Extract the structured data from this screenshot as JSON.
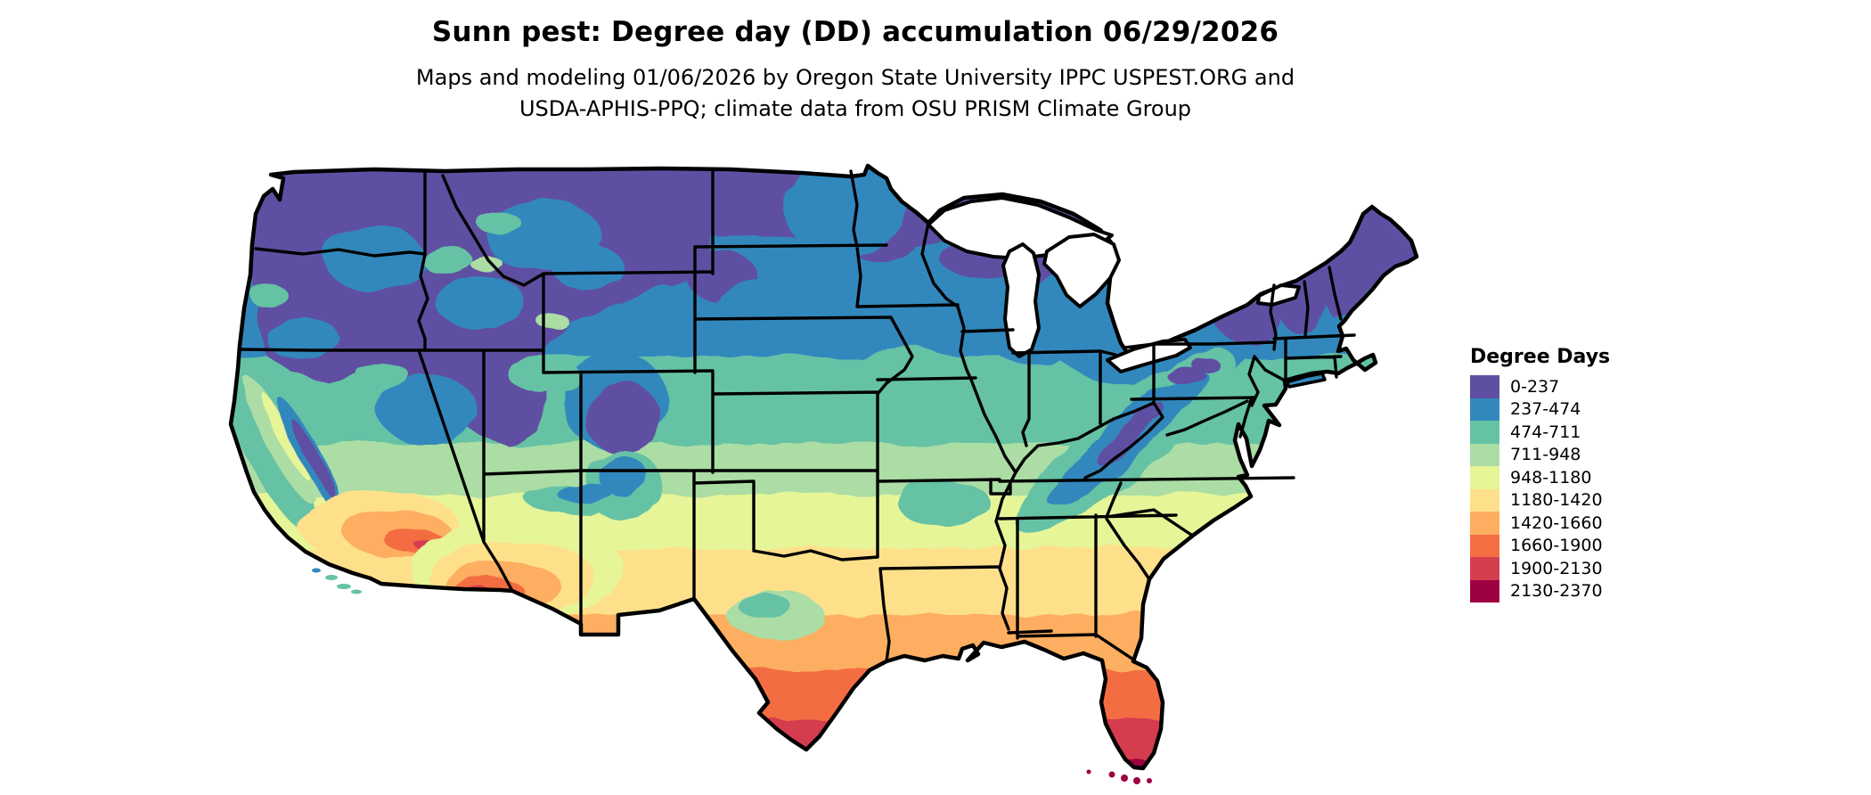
{
  "header": {
    "title": "Sunn pest: Degree day (DD) accumulation 06/29/2026",
    "subtitle_line1": "Maps and modeling 01/06/2026 by Oregon State University IPPC USPEST.ORG and",
    "subtitle_line2": "USDA-APHIS-PPQ; climate data from OSU PRISM Climate Group"
  },
  "legend": {
    "title": "Degree Days",
    "items": [
      {
        "label": "0-237",
        "color": "#5e4fa2"
      },
      {
        "label": "237-474",
        "color": "#3288bd"
      },
      {
        "label": "474-711",
        "color": "#66c2a5"
      },
      {
        "label": "711-948",
        "color": "#abdda4"
      },
      {
        "label": "948-1180",
        "color": "#e6f598"
      },
      {
        "label": "1180-1420",
        "color": "#fee08b"
      },
      {
        "label": "1420-1660",
        "color": "#fdae61"
      },
      {
        "label": "1660-1900",
        "color": "#f46d43"
      },
      {
        "label": "1900-2130",
        "color": "#d53e4f"
      },
      {
        "label": "2130-2370",
        "color": "#9e0142"
      }
    ]
  },
  "map": {
    "type": "choropleth-raster",
    "region": "Contiguous United States",
    "border_color": "#000000",
    "background_color": "#ffffff",
    "gradient_note": "degree-day accumulation bands, cool north / hot south"
  },
  "chart_data": {
    "type": "heatmap",
    "title": "Sunn pest: Degree day (DD) accumulation 06/29/2026",
    "legend_title": "Degree Days",
    "bins": [
      {
        "range": [
          0,
          237
        ],
        "color": "#5e4fa2"
      },
      {
        "range": [
          237,
          474
        ],
        "color": "#3288bd"
      },
      {
        "range": [
          474,
          711
        ],
        "color": "#66c2a5"
      },
      {
        "range": [
          711,
          948
        ],
        "color": "#abdda4"
      },
      {
        "range": [
          948,
          1180
        ],
        "color": "#e6f598"
      },
      {
        "range": [
          1180,
          1420
        ],
        "color": "#fee08b"
      },
      {
        "range": [
          1420,
          1660
        ],
        "color": "#fdae61"
      },
      {
        "range": [
          1660,
          1900
        ],
        "color": "#f46d43"
      },
      {
        "range": [
          1900,
          2130
        ],
        "color": "#d53e4f"
      },
      {
        "range": [
          2130,
          2370
        ],
        "color": "#9e0142"
      }
    ],
    "value_range": [
      0,
      2370
    ],
    "legend_position": "right"
  }
}
